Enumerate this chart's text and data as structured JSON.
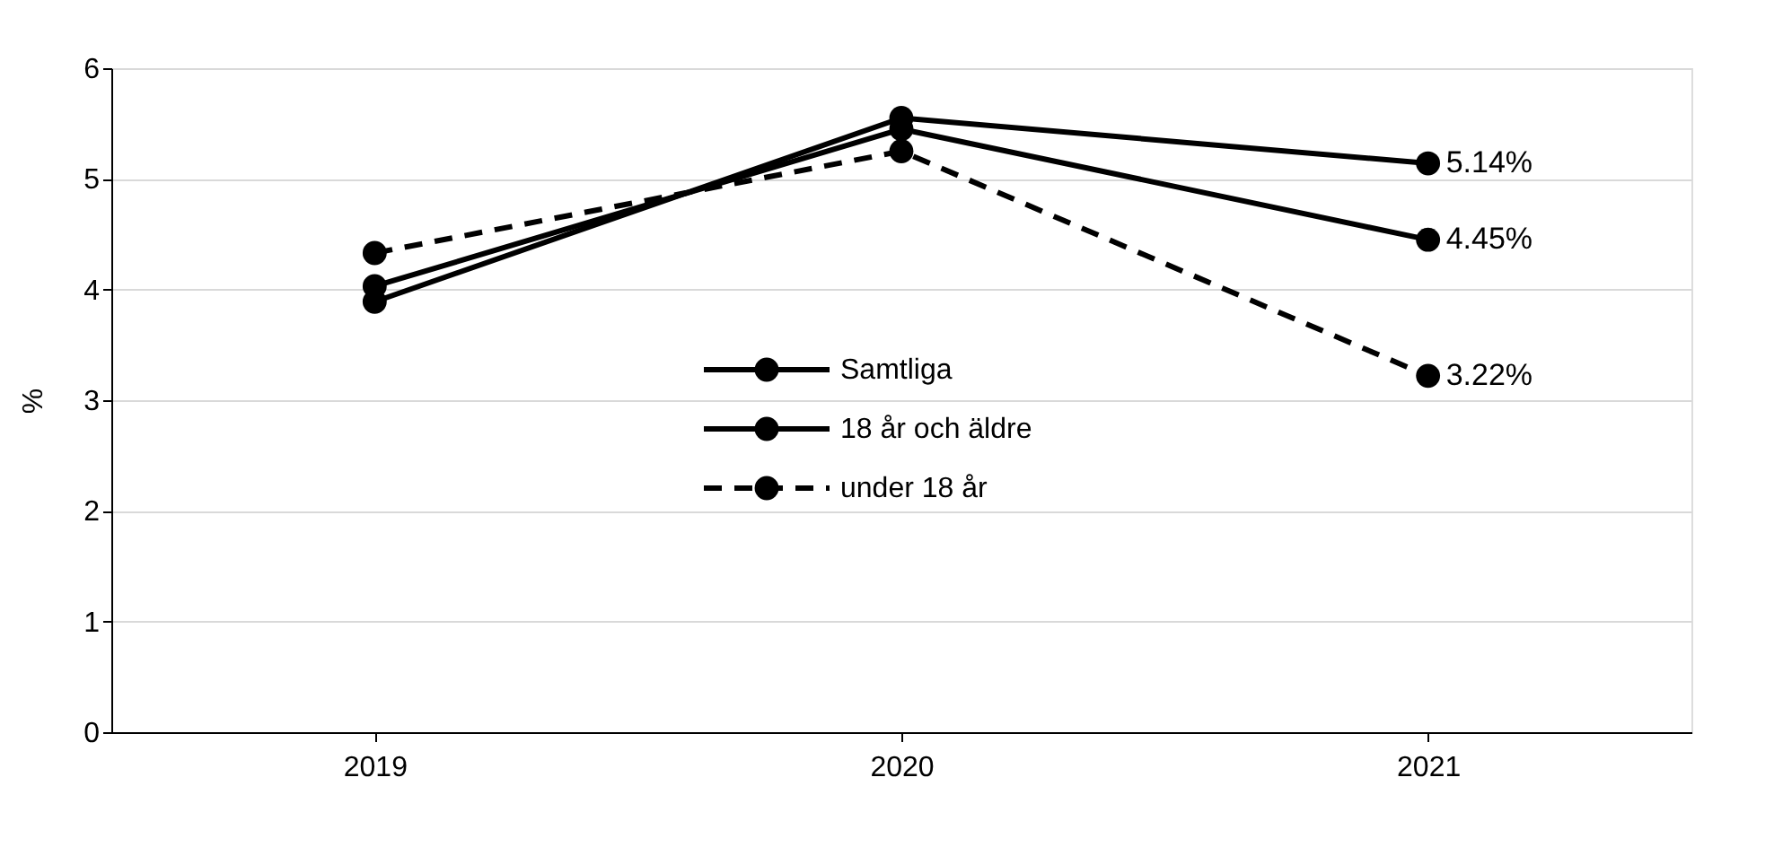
{
  "chart_data": {
    "type": "line",
    "ylabel": "%",
    "categories": [
      "2019",
      "2020",
      "2021"
    ],
    "series": [
      {
        "name": "Samtliga",
        "color": "#000000",
        "line_style": "solid",
        "values": [
          4.03,
          5.45,
          4.45
        ],
        "value_labels": [
          null,
          null,
          "4.45%"
        ]
      },
      {
        "name": "18 år och äldre",
        "color": "#000000",
        "line_style": "solid",
        "values": [
          3.89,
          5.55,
          5.14
        ],
        "value_labels": [
          null,
          null,
          "5.14%"
        ]
      },
      {
        "name": "under 18 år",
        "color": "#000000",
        "line_style": "dashed",
        "values": [
          4.33,
          5.25,
          3.22
        ],
        "value_labels": [
          null,
          null,
          "3.22%"
        ]
      }
    ],
    "ylim": [
      0,
      6
    ],
    "yticks": [
      0,
      1,
      2,
      3,
      4,
      5,
      6
    ],
    "grid": "y",
    "legend": "center",
    "marker": "circle"
  }
}
